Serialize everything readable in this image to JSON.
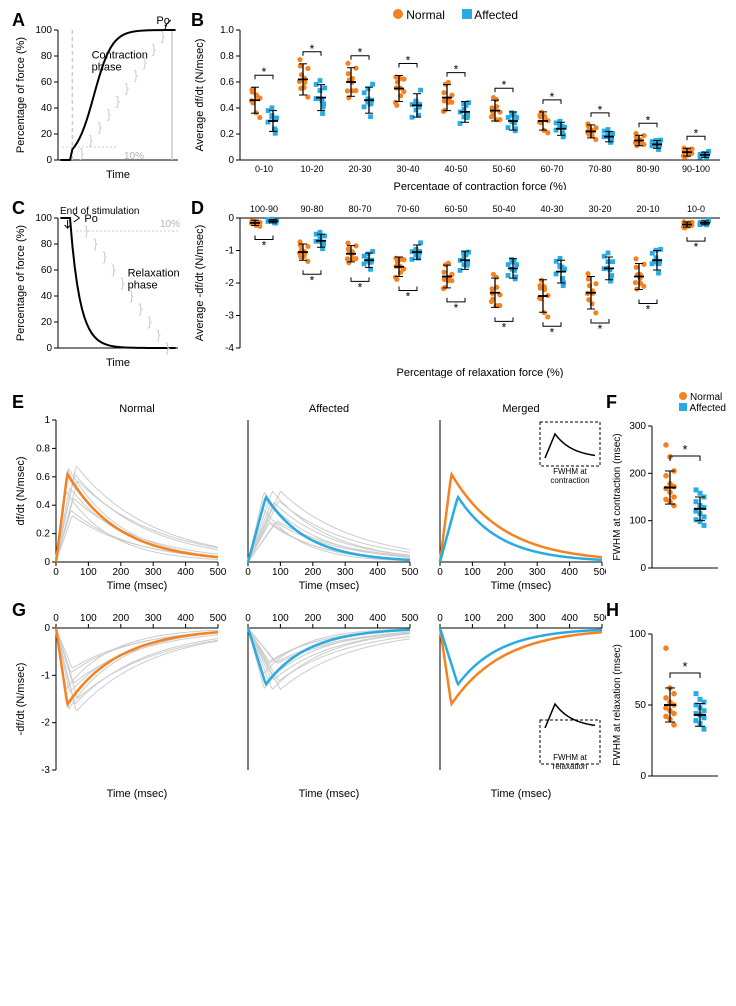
{
  "colors": {
    "normal": "#f58220",
    "affected": "#29abe2",
    "axis": "#000000",
    "grey": "#b3b3b3",
    "grey_light": "#cccccc",
    "black": "#000000",
    "bg": "#ffffff"
  },
  "legend": {
    "normal": "Normal",
    "affected": "Affected"
  },
  "panels": {
    "A": {
      "label": "A",
      "ylabel": "Percentage of force (%)",
      "xlabel": "Time",
      "annotation_contraction": "Contraction\nphase",
      "annotation_po": "Po",
      "annotation_10": "10%",
      "yticks": [
        0,
        20,
        40,
        60,
        80,
        100
      ]
    },
    "B": {
      "label": "B",
      "ylabel": "Average df/dt (N/msec)",
      "xlabel": "Percentage of contraction force (%)",
      "ylim": [
        0,
        1.0
      ],
      "ytick_step": 0.2,
      "categories": [
        "0-10",
        "10-20",
        "20-30",
        "30-40",
        "40-50",
        "50-60",
        "60-70",
        "70-80",
        "80-90",
        "90-100"
      ],
      "normal_mean": [
        0.46,
        0.62,
        0.6,
        0.55,
        0.48,
        0.38,
        0.3,
        0.22,
        0.15,
        0.06
      ],
      "normal_sd": [
        0.1,
        0.12,
        0.11,
        0.1,
        0.1,
        0.08,
        0.07,
        0.05,
        0.04,
        0.03
      ],
      "affected_mean": [
        0.3,
        0.48,
        0.46,
        0.42,
        0.37,
        0.3,
        0.24,
        0.18,
        0.12,
        0.04
      ],
      "affected_sd": [
        0.08,
        0.1,
        0.1,
        0.09,
        0.08,
        0.07,
        0.05,
        0.04,
        0.03,
        0.02
      ],
      "sig": [
        true,
        true,
        true,
        true,
        true,
        true,
        true,
        true,
        true,
        true
      ]
    },
    "C": {
      "label": "C",
      "ylabel": "Percentage of force (%)",
      "xlabel": "Time",
      "annotation_end": "End of stimulation",
      "annotation_po": "Po",
      "annotation_relax": "Relaxation\nphase",
      "annotation_10": "10%",
      "yticks": [
        0,
        20,
        40,
        60,
        80,
        100
      ]
    },
    "D": {
      "label": "D",
      "ylabel": "Average -df/dt (N/msec)",
      "xlabel": "Percentage of relaxation force (%)",
      "ylim": [
        -4,
        0
      ],
      "ytick_step": 1,
      "categories": [
        "100-90",
        "90-80",
        "80-70",
        "70-60",
        "60-50",
        "50-40",
        "40-30",
        "30-20",
        "20-10",
        "10-0"
      ],
      "normal_mean": [
        -0.15,
        -1.05,
        -1.1,
        -1.5,
        -1.8,
        -2.3,
        -2.4,
        -2.3,
        -1.8,
        -0.2
      ],
      "normal_sd": [
        0.08,
        0.25,
        0.25,
        0.3,
        0.35,
        0.45,
        0.5,
        0.5,
        0.4,
        0.08
      ],
      "affected_mean": [
        -0.1,
        -0.7,
        -1.3,
        -1.05,
        -1.3,
        -1.55,
        -1.65,
        -1.55,
        -1.3,
        -0.15
      ],
      "affected_sd": [
        0.05,
        0.2,
        0.22,
        0.22,
        0.28,
        0.3,
        0.35,
        0.35,
        0.3,
        0.06
      ],
      "sig": [
        true,
        true,
        true,
        true,
        true,
        true,
        true,
        true,
        true,
        true
      ]
    },
    "E": {
      "label": "E",
      "ylabel": "df/dt (N/msec)",
      "xlabel": "Time (msec)",
      "xlim": [
        0,
        500
      ],
      "xticks": [
        0,
        100,
        200,
        300,
        400,
        500
      ],
      "ylim": [
        0,
        1.0
      ],
      "yticks": [
        0,
        0.2,
        0.4,
        0.6,
        0.8,
        1.0
      ],
      "titles": [
        "Normal",
        "Affected",
        "Merged"
      ],
      "inset_label": "FWHM at\ncontraction"
    },
    "F": {
      "label": "F",
      "ylabel": "FWHM at contraction (msec)",
      "ylim": [
        0,
        300
      ],
      "yticks": [
        0,
        100,
        200,
        300
      ],
      "normal_mean": 170,
      "normal_sd": 35,
      "affected_mean": 125,
      "affected_sd": 25,
      "sig": true,
      "normal_pts": [
        260,
        235,
        205,
        195,
        178,
        172,
        168,
        160,
        150,
        145,
        140,
        132
      ],
      "affected_pts": [
        165,
        158,
        150,
        140,
        132,
        128,
        120,
        115,
        108,
        102,
        98,
        90
      ]
    },
    "G": {
      "label": "G",
      "ylabel": "-df/dt (N/msec)",
      "xlabel": "Time (msec)",
      "xlim": [
        0,
        500
      ],
      "xticks": [
        0,
        100,
        200,
        300,
        400,
        500
      ],
      "ylim": [
        -3,
        0
      ],
      "yticks": [
        -3,
        -2,
        -1,
        0
      ],
      "inset_label": "FWHM at\nrelaxation"
    },
    "H": {
      "label": "H",
      "ylabel": "FWHM at relaxation (msec)",
      "ylim": [
        0,
        100
      ],
      "yticks": [
        0,
        50,
        100
      ],
      "normal_mean": 50,
      "normal_sd": 12,
      "affected_mean": 43,
      "affected_sd": 8,
      "sig": true,
      "normal_pts": [
        90,
        62,
        58,
        55,
        52,
        50,
        48,
        46,
        44,
        42,
        40,
        36
      ],
      "affected_pts": [
        58,
        54,
        52,
        50,
        48,
        46,
        44,
        43,
        41,
        39,
        37,
        33
      ]
    }
  }
}
